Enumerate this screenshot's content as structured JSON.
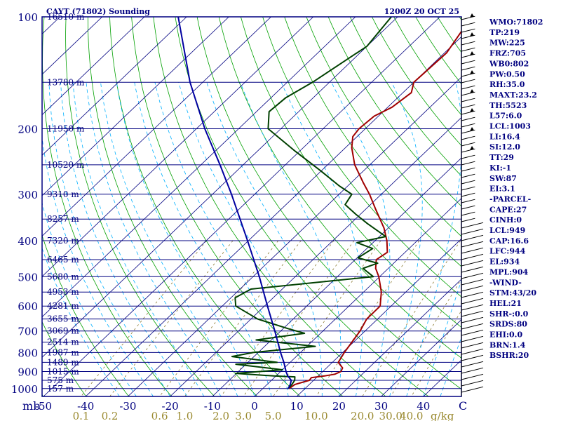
{
  "chart_data": {
    "type": "line",
    "title": "CAYT (71802) Sounding",
    "subtitle": "1200Z 20 OCT 25",
    "pressure_levels": [
      100,
      200,
      300,
      400,
      500,
      600,
      700,
      800,
      900,
      1000
    ],
    "pressure_labels": [
      "100",
      "200",
      "300",
      "400",
      "500",
      "600",
      "700",
      "800",
      "900",
      "1000"
    ],
    "height_levels": [
      {
        "p": 100,
        "label": "16510 m"
      },
      {
        "p": 150,
        "label": "13780 m"
      },
      {
        "p": 200,
        "label": "11950 m"
      },
      {
        "p": 250,
        "label": "10520 m"
      },
      {
        "p": 300,
        "label": "9310 m"
      },
      {
        "p": 350,
        "label": "8257 m"
      },
      {
        "p": 400,
        "label": "7320 m"
      },
      {
        "p": 450,
        "label": "6465 m"
      },
      {
        "p": 500,
        "label": "5680 m"
      },
      {
        "p": 550,
        "label": "4953 m"
      },
      {
        "p": 600,
        "label": "4281 m"
      },
      {
        "p": 650,
        "label": "3655 m"
      },
      {
        "p": 700,
        "label": "3069 m"
      },
      {
        "p": 750,
        "label": "2514 m"
      },
      {
        "p": 800,
        "label": "1987 m"
      },
      {
        "p": 850,
        "label": "1489 m"
      },
      {
        "p": 900,
        "label": "1015 m"
      },
      {
        "p": 950,
        "label": "575 m"
      },
      {
        "p": 1000,
        "label": "157 m"
      }
    ],
    "temp_ticks": [
      -50,
      -40,
      -30,
      -20,
      -10,
      0,
      10,
      20,
      30,
      40
    ],
    "temp_tick_labels": [
      "-50",
      "-40",
      "-30",
      "-20",
      "-10",
      "0",
      "10",
      "20",
      "30",
      "40"
    ],
    "temp_unit": "C",
    "pressure_unit": "mb",
    "mixing_ratio_labels": [
      "0.1",
      "0.2",
      "0.6",
      "1.0",
      "2.0",
      "3.0",
      "5.0",
      "10.0",
      "20.0",
      "30.0",
      "40.0"
    ],
    "mixing_ratio_unit": "g/kg",
    "series": [
      {
        "key": "temperature",
        "color": "#a00000",
        "points": [
          [
            1000,
            6.2
          ],
          [
            975,
            6.6
          ],
          [
            950,
            9.0
          ],
          [
            935,
            8.8
          ],
          [
            925,
            11.5
          ],
          [
            915,
            13.5
          ],
          [
            900,
            14.3
          ],
          [
            880,
            13.8
          ],
          [
            850,
            11.4
          ],
          [
            800,
            10.4
          ],
          [
            700,
            8.8
          ],
          [
            650,
            7.4
          ],
          [
            600,
            7.4
          ],
          [
            550,
            4.2
          ],
          [
            500,
            -0.2
          ],
          [
            475,
            -3.0
          ],
          [
            450,
            -5.0
          ],
          [
            430,
            -4.2
          ],
          [
            400,
            -7.2
          ],
          [
            370,
            -11.0
          ],
          [
            330,
            -17.5
          ],
          [
            300,
            -22.8
          ],
          [
            280,
            -27.0
          ],
          [
            250,
            -33.6
          ],
          [
            225,
            -38.5
          ],
          [
            210,
            -41.0
          ],
          [
            200,
            -41.5
          ],
          [
            185,
            -41.0
          ],
          [
            175,
            -39.0
          ],
          [
            160,
            -38.0
          ],
          [
            150,
            -40.0
          ],
          [
            125,
            -39.5
          ],
          [
            100,
            -42.5
          ]
        ]
      },
      {
        "key": "dewpoint",
        "color": "#004000",
        "points": [
          [
            1000,
            6.0
          ],
          [
            975,
            5.9
          ],
          [
            950,
            5.5
          ],
          [
            930,
            4.7
          ],
          [
            925,
            -0.5
          ],
          [
            910,
            -10.2
          ],
          [
            890,
            0.0
          ],
          [
            860,
            -12.4
          ],
          [
            850,
            -3.1
          ],
          [
            820,
            -15.2
          ],
          [
            800,
            -11.2
          ],
          [
            770,
            2.0
          ],
          [
            740,
            -13.6
          ],
          [
            710,
            -3.8
          ],
          [
            690,
            -8.8
          ],
          [
            650,
            -18.4
          ],
          [
            600,
            -26.8
          ],
          [
            570,
            -29.0
          ],
          [
            540,
            -27.4
          ],
          [
            500,
            -1.5
          ],
          [
            475,
            -6.0
          ],
          [
            460,
            -3.8
          ],
          [
            445,
            -9.8
          ],
          [
            420,
            -8.6
          ],
          [
            405,
            -13.8
          ],
          [
            390,
            -8.5
          ],
          [
            360,
            -16.0
          ],
          [
            340,
            -21.0
          ],
          [
            320,
            -26.0
          ],
          [
            300,
            -27.0
          ],
          [
            285,
            -32.0
          ],
          [
            260,
            -40.0
          ],
          [
            230,
            -51.0
          ],
          [
            200,
            -63.0
          ],
          [
            180,
            -67.0
          ],
          [
            165,
            -66.5
          ],
          [
            150,
            -64.0
          ],
          [
            120,
            -60.0
          ],
          [
            100,
            -61.5
          ]
        ]
      },
      {
        "key": "parcel",
        "color": "#0000a0",
        "points": [
          [
            1000,
            6.0
          ],
          [
            975,
            5.5
          ],
          [
            950,
            4.7
          ],
          [
            925,
            2.8
          ],
          [
            900,
            1.3
          ],
          [
            850,
            -1.5
          ],
          [
            800,
            -4.7
          ],
          [
            700,
            -11.4
          ],
          [
            600,
            -19.3
          ],
          [
            500,
            -28.5
          ],
          [
            400,
            -40.2
          ],
          [
            300,
            -55.5
          ],
          [
            250,
            -65.5
          ],
          [
            200,
            -78.0
          ],
          [
            150,
            -93.0
          ],
          [
            100,
            -112.0
          ]
        ]
      }
    ],
    "indices": [
      "WMO:71802",
      "TP:219",
      "MW:225",
      "FRZ:705",
      "WB0:802",
      "PW:0.50",
      "RH:35.0",
      "MAXT:23.2",
      "TH:5523",
      "L57:6.0",
      "LCL:1003",
      "LI:16.4",
      "SI:12.0",
      "TT:29",
      "KI:-1",
      "SW:87",
      "EI:3.1",
      "-PARCEL-",
      "CAPE:27",
      "CINH:0",
      "LCL:949",
      "CAP:16.6",
      "LFC:944",
      "EL:934",
      "MPL:904",
      "-WIND-",
      "STM:43/20",
      "HEL:21",
      "SHR-:0.0",
      "SRDS:80",
      "EHI:0.0",
      "BRN:1.4",
      "BSHR:20"
    ],
    "colors": {
      "axis": "#000080",
      "isobar": "#000080",
      "isotherm": "#000080",
      "dry_adiabat": "#00a000",
      "moist_adiabat": "#00b0ff",
      "mixing_ratio": "#8a7a30",
      "wind_barb": "#000000"
    }
  }
}
